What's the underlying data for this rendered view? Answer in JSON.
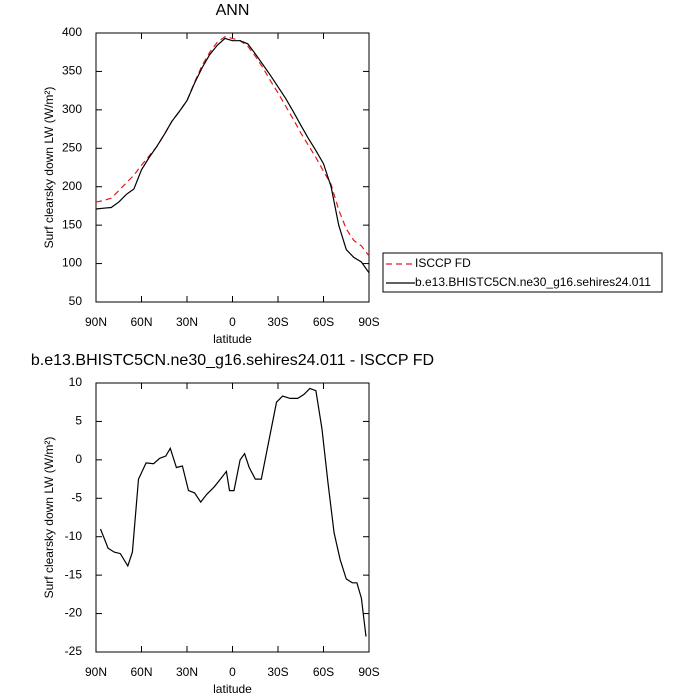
{
  "chart_data": [
    {
      "type": "line",
      "title": "ANN",
      "xlabel": "latitude",
      "ylabel": "Surf clearsky down LW (W/m²)",
      "x": [
        90,
        85,
        80,
        75,
        70,
        65,
        60,
        55,
        50,
        45,
        40,
        35,
        30,
        25,
        20,
        15,
        10,
        5,
        0,
        -5,
        -10,
        -15,
        -20,
        -25,
        -30,
        -35,
        -40,
        -45,
        -50,
        -55,
        -60,
        -65,
        -70,
        -75,
        -80,
        -85,
        -90
      ],
      "series": [
        {
          "name": "ISCCP FD",
          "color": "#e31a1c",
          "linestyle": "dashed",
          "values": [
            180,
            182,
            185,
            195,
            205,
            215,
            228,
            240,
            252,
            268,
            285,
            298,
            312,
            336,
            358,
            375,
            388,
            395,
            393,
            390,
            383,
            370,
            355,
            338,
            322,
            305,
            288,
            270,
            254,
            238,
            220,
            203,
            170,
            145,
            130,
            123,
            110
          ]
        },
        {
          "name": "b.e13.BHISTC5CN.ne30_g16.sehires24.011",
          "color": "#000000",
          "linestyle": "solid",
          "values": [
            171,
            172,
            173,
            180,
            190,
            197,
            222,
            238,
            252,
            268,
            285,
            298,
            312,
            335,
            355,
            372,
            384,
            393,
            390,
            390,
            386,
            373,
            359,
            345,
            330,
            315,
            298,
            280,
            263,
            247,
            230,
            200,
            150,
            118,
            108,
            102,
            88
          ]
        }
      ],
      "xlim": [
        90,
        -90
      ],
      "xticks": [
        {
          "value": 90,
          "label": "90N"
        },
        {
          "value": 60,
          "label": "60N"
        },
        {
          "value": 30,
          "label": "30N"
        },
        0,
        {
          "value": -30,
          "label": "30S"
        },
        {
          "value": -60,
          "label": "60S"
        },
        {
          "value": -90,
          "label": "90S"
        }
      ],
      "ylim": [
        50,
        400
      ],
      "yticks": [
        50,
        100,
        150,
        200,
        250,
        300,
        350,
        400
      ],
      "legend": "outside-right"
    },
    {
      "type": "line",
      "title": "b.e13.BHISTC5CN.ne30_g16.sehires24.011 - ISCCP FD",
      "xlabel": "latitude",
      "ylabel": "Surf clearsky down LW (W/m²)",
      "x": [
        87,
        82,
        78,
        74,
        69,
        66,
        62,
        57,
        52,
        48,
        44,
        41,
        37,
        33,
        29,
        25,
        21,
        17,
        12,
        8,
        4,
        2,
        -1,
        -5,
        -8,
        -11,
        -15,
        -19,
        -23,
        -29,
        -33,
        -38,
        -43,
        -47,
        -51,
        -55,
        -59,
        -63,
        -67,
        -71,
        -75,
        -79,
        -82,
        -85,
        -88
      ],
      "series": [
        {
          "color": "#000000",
          "linestyle": "solid",
          "values": [
            -9,
            -11.5,
            -12,
            -12.2,
            -13.8,
            -12,
            -2.5,
            -0.4,
            -0.5,
            0.2,
            0.5,
            1.5,
            -1,
            -0.8,
            -4,
            -4.3,
            -5.5,
            -4.5,
            -3.5,
            -2.5,
            -1.5,
            -4,
            -4,
            0,
            0.8,
            -1,
            -2.5,
            -2.5,
            1.5,
            7.5,
            8.3,
            8,
            8,
            8.5,
            9.3,
            9,
            4,
            -3,
            -9.5,
            -13,
            -15.5,
            -16,
            -16,
            -18,
            -23
          ]
        }
      ],
      "xlim": [
        90,
        -90
      ],
      "xticks": [
        {
          "value": 90,
          "label": "90N"
        },
        {
          "value": 60,
          "label": "60N"
        },
        {
          "value": 30,
          "label": "30N"
        },
        0,
        {
          "value": -30,
          "label": "30S"
        },
        {
          "value": -60,
          "label": "60S"
        },
        {
          "value": -90,
          "label": "90S"
        }
      ],
      "ylim": [
        -25,
        10
      ],
      "yticks": [
        -25,
        -20,
        -15,
        -10,
        -5,
        0,
        5,
        10
      ]
    }
  ]
}
